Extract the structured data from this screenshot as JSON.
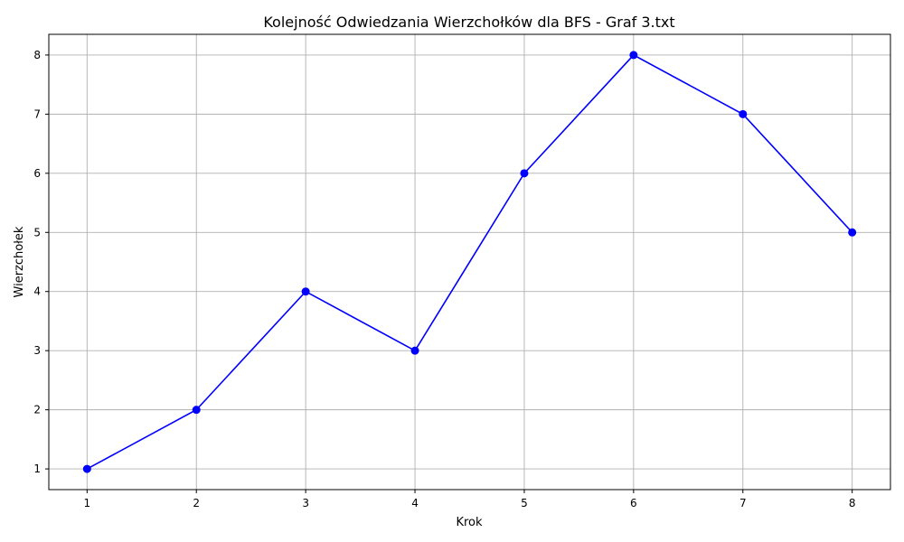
{
  "chart_data": {
    "type": "line",
    "title": "Kolejność Odwiedzania Wierzchołków dla BFS - Graf 3.txt",
    "xlabel": "Krok",
    "ylabel": "Wierzchołek",
    "x": [
      1,
      2,
      3,
      4,
      5,
      6,
      7,
      8
    ],
    "series": [
      {
        "values": [
          1,
          2,
          4,
          3,
          6,
          8,
          7,
          5
        ],
        "color": "#0000ff",
        "marker": "circle"
      }
    ],
    "xticks": [
      1,
      2,
      3,
      4,
      5,
      6,
      7,
      8
    ],
    "yticks": [
      1,
      2,
      3,
      4,
      5,
      6,
      7,
      8
    ],
    "xlim": [
      0.65,
      8.35
    ],
    "ylim": [
      0.65,
      8.35
    ],
    "grid": true,
    "legend": "none"
  }
}
